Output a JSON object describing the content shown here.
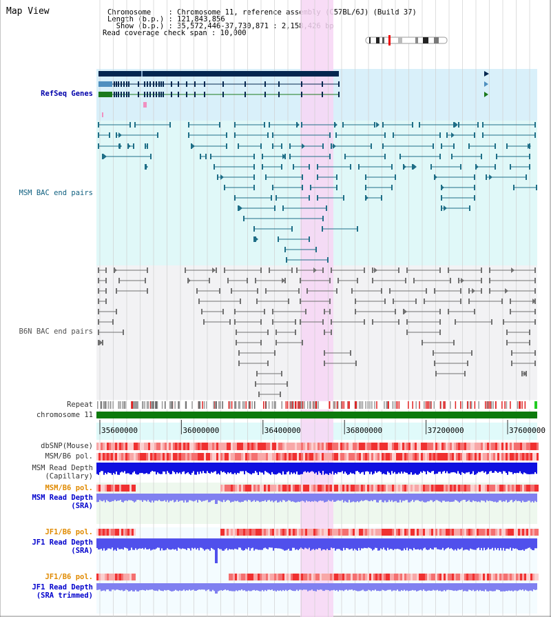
{
  "page": {
    "title": "Map View"
  },
  "info": {
    "chromosome": "Chromosome    : Chromosome 11, reference assembly (C57BL/6J) (Build 37)",
    "length": "Length (b.p.) : 121,843,856",
    "show": "  Show (b.p.) : 35,572,446-37,730,871 : 2,158,426 bp",
    "coverage": "Read coverage check span : 10,000"
  },
  "labels": {
    "refseq": "RefSeq Genes",
    "msm_bac": "MSM BAC end pairs",
    "b6n_bac": "B6N BAC end pairs",
    "repeat": "Repeat",
    "chromosome": "chromosome 11",
    "dbsnp": "dbSNP(Mouse)",
    "msm_pol": "MSM/B6 pol.",
    "msm_depth_cap_1": "MSM Read Depth",
    "msm_depth_cap_2": "(Capillary)",
    "msm_pol_sra": "MSM/B6 pol.",
    "msm_depth_sra_1": "MSM Read Depth",
    "msm_depth_sra_2": "(SRA)",
    "jf1_pol": "JF1/B6 pol.",
    "jf1_depth_1": "JF1 Read Depth",
    "jf1_depth_2": "(SRA)",
    "jf1_pol_trim": "JF1/B6 pol.",
    "jf1_trim_1": "JF1 Read Depth",
    "jf1_trim_2": "(SRA trimmed)"
  },
  "axis": {
    "ticks": [
      "35600000",
      "36000000",
      "36400000",
      "36800000",
      "37200000",
      "37600000"
    ]
  },
  "colors": {
    "refseq_bg": "#d9f0fa",
    "msm_bg": "#e0f8f8",
    "b6n_bg": "#f2f2f4",
    "highlight": "#f7d6f4",
    "gene_dark": "#04264f",
    "gene_mid": "#4f8fbf",
    "gene_green": "#1c7a1c",
    "msm_feature": "#1e6e87",
    "b6n_feature": "#707070",
    "chromosome_bar": "#0c7a0c",
    "repeat_red": "#e02020",
    "depth_blue": "#1010e0",
    "depth_light": "#8080f0"
  }
}
